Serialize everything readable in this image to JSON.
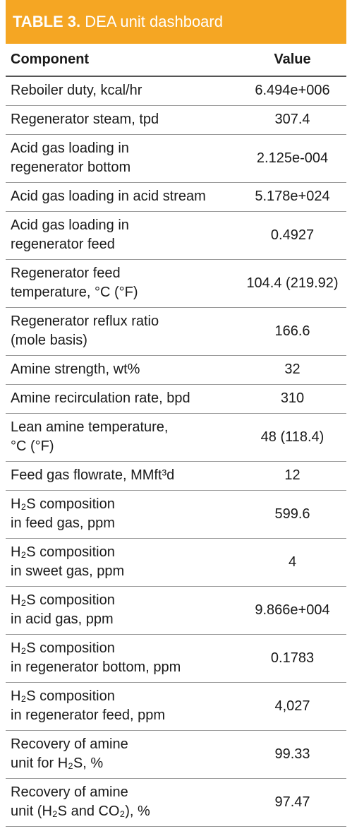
{
  "header": {
    "label": "TABLE 3.",
    "title": "DEA unit dashboard"
  },
  "table": {
    "columns": [
      "Component",
      "Value"
    ],
    "rows": [
      [
        [
          "Reboiler duty, kcal/hr"
        ],
        "6.494e+006"
      ],
      [
        [
          "Regenerator steam, tpd"
        ],
        "307.4"
      ],
      [
        [
          "Acid gas loading in",
          "regenerator bottom"
        ],
        "2.125e-004"
      ],
      [
        [
          "Acid gas loading in acid stream"
        ],
        "5.178e+024"
      ],
      [
        [
          "Acid gas loading in",
          "regenerator feed"
        ],
        "0.4927"
      ],
      [
        [
          "Regenerator feed",
          "temperature, °C (°F)"
        ],
        "104.4 (219.92)"
      ],
      [
        [
          "Regenerator reflux ratio",
          "(mole basis)"
        ],
        "166.6"
      ],
      [
        [
          "Amine strength, wt%"
        ],
        "32"
      ],
      [
        [
          "Amine recirculation rate, bpd"
        ],
        "310"
      ],
      [
        [
          "Lean amine temperature,",
          "°C (°F)"
        ],
        "48 (118.4)"
      ],
      [
        [
          "Feed gas flowrate, MMft³d"
        ],
        "12"
      ],
      [
        [
          "H₂S composition",
          "in feed gas, ppm"
        ],
        "599.6"
      ],
      [
        [
          "H₂S composition",
          "in sweet gas, ppm"
        ],
        "4"
      ],
      [
        [
          "H₂S composition",
          "in acid gas, ppm"
        ],
        "9.866e+004"
      ],
      [
        [
          "H₂S composition",
          "in regenerator bottom, ppm"
        ],
        "0.1783"
      ],
      [
        [
          "H₂S composition",
          "in regenerator feed, ppm"
        ],
        "4,027"
      ],
      [
        [
          "Recovery of amine",
          "unit for H₂S, %"
        ],
        "99.33"
      ],
      [
        [
          "Recovery of amine",
          "unit (H₂S and CO₂), %"
        ],
        "97.47"
      ]
    ]
  }
}
